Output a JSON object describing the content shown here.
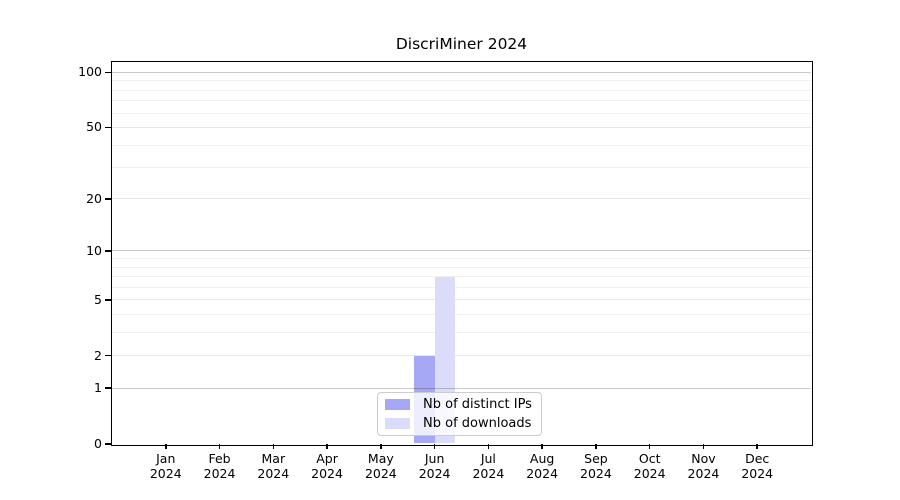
{
  "title": "DiscriMiner 2024",
  "chart_data": {
    "type": "bar",
    "title": "DiscriMiner 2024",
    "categories": [
      "Jan",
      "Feb",
      "Mar",
      "Apr",
      "May",
      "Jun",
      "Jul",
      "Aug",
      "Sep",
      "Oct",
      "Nov",
      "Dec"
    ],
    "category_year": "2024",
    "series": [
      {
        "name": "Nb of distinct IPs",
        "color": "#a7a8f5",
        "values": [
          0,
          0,
          0,
          0,
          0,
          2,
          0,
          0,
          0,
          0,
          0,
          0
        ]
      },
      {
        "name": "Nb of downloads",
        "color": "#dbdcfa",
        "values": [
          0,
          0,
          0,
          0,
          0,
          7,
          0,
          0,
          0,
          0,
          0,
          0
        ]
      }
    ],
    "xlabel": "",
    "ylabel": "",
    "y_scale": "log10(1+v)",
    "y_tick_values": [
      100,
      50,
      20,
      10,
      5,
      2,
      1,
      0
    ],
    "y_minor_grid_values": [
      3,
      4,
      6,
      7,
      8,
      9,
      30,
      40,
      60,
      70,
      80,
      90
    ],
    "y_sub_grid_values": [
      2,
      5,
      20,
      50
    ],
    "y_decade_grid_values": [
      1,
      10,
      100
    ],
    "ylim": [
      0,
      114
    ],
    "grid": "both",
    "legend_position": "lower center"
  }
}
